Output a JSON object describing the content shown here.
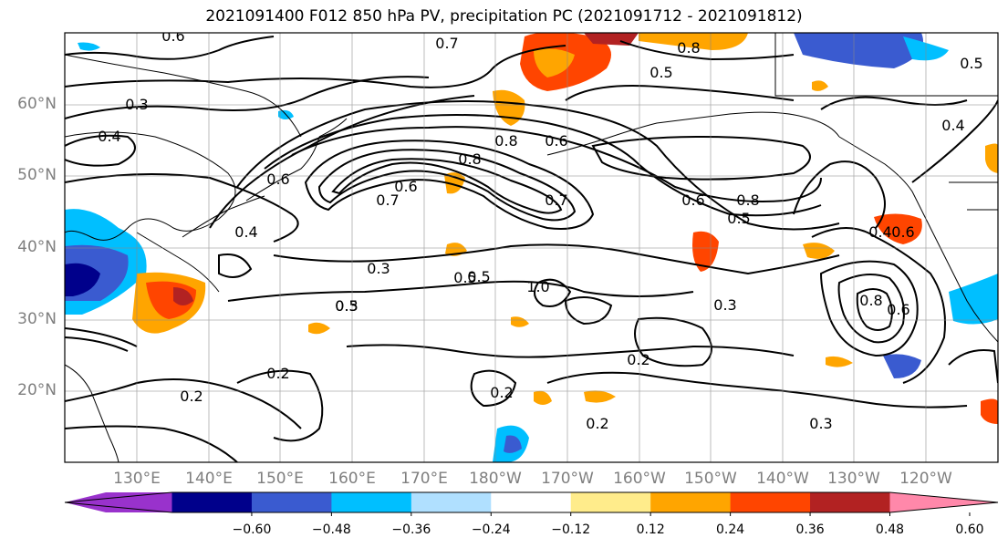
{
  "title": "2021091400 F012 850 hPa PV, precipitation PC (2021091712 - 2021091812)",
  "lat_labels": [
    "60°N",
    "50°N",
    "40°N",
    "30°N",
    "20°N"
  ],
  "lon_labels": [
    "130°E",
    "140°E",
    "150°E",
    "160°E",
    "170°E",
    "180°W",
    "170°W",
    "160°W",
    "150°W",
    "140°W",
    "130°W",
    "120°W"
  ],
  "contour_labels": [
    "0.6",
    "0.7",
    "0.8",
    "0.5",
    "0.6",
    "0.5",
    "0.3",
    "0.4",
    "0.6",
    "0.4",
    "0.7",
    "0.6",
    "0.8",
    "0.8",
    "0.7",
    "0.6",
    "0.8",
    "0.5",
    "0.3",
    "0.5",
    "0.3",
    "0.3",
    "0.2",
    "0.2",
    "0.2",
    "0.2",
    "0.2",
    "0.3",
    "1.0",
    "0.8",
    "0.6",
    "0.5",
    "0.4",
    "0.6",
    "0.5",
    "0.4"
  ],
  "colorbar": {
    "ticks": [
      "−0.60",
      "−0.48",
      "−0.36",
      "−0.24",
      "−0.12",
      "0.12",
      "0.24",
      "0.36",
      "0.48",
      "0.60"
    ],
    "colors": [
      "#9932cc",
      "#00008b",
      "#3a5bd0",
      "#00bfff",
      "#b0e0ff",
      "#ffffff",
      "#ffec8b",
      "#ffa500",
      "#ff4500",
      "#b22222",
      "#ff88aa"
    ]
  }
}
